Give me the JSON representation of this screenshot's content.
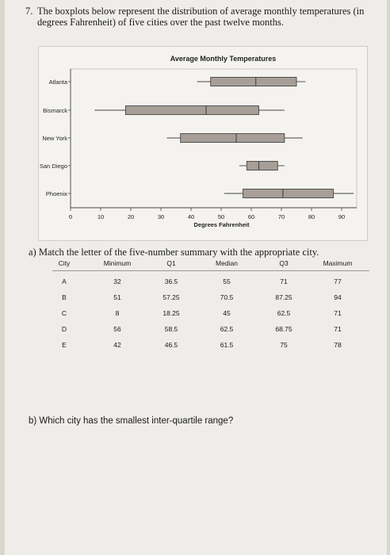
{
  "question": {
    "number": "7.",
    "text": "The boxplots below represent the distribution of average monthly temperatures (in degrees Fahrenheit) of five cities over the past twelve months."
  },
  "chart_data": {
    "type": "boxplot",
    "title": "Average Monthly Temperatures",
    "xlabel": "Degrees Fahrenheit",
    "ylabel": "",
    "xlim": [
      0,
      95
    ],
    "x_ticks": [
      0,
      10,
      20,
      30,
      40,
      50,
      60,
      70,
      80,
      90
    ],
    "series": [
      {
        "name": "Atlanta",
        "min": 42,
        "q1": 46.5,
        "median": 61.5,
        "q3": 75,
        "max": 78
      },
      {
        "name": "Bismarck",
        "min": 8,
        "q1": 18.25,
        "median": 45,
        "q3": 62.5,
        "max": 71
      },
      {
        "name": "New York",
        "min": 32,
        "q1": 36.5,
        "median": 55,
        "q3": 71,
        "max": 77
      },
      {
        "name": "San Diego",
        "min": 56,
        "q1": 58.5,
        "median": 62.5,
        "q3": 68.75,
        "max": 71
      },
      {
        "name": "Phoenix",
        "min": 51,
        "q1": 57.25,
        "median": 70.5,
        "q3": 87.25,
        "max": 94
      }
    ]
  },
  "part_a": {
    "prompt": "a) Match the letter of the five-number summary with the appropriate city.",
    "headers": [
      "City",
      "Minimum",
      "Q1",
      "Median",
      "Q3",
      "Maximum"
    ],
    "rows": [
      [
        "A",
        "32",
        "36.5",
        "55",
        "71",
        "77"
      ],
      [
        "B",
        "51",
        "57.25",
        "70.5",
        "87.25",
        "94"
      ],
      [
        "C",
        "8",
        "18.25",
        "45",
        "62.5",
        "71"
      ],
      [
        "D",
        "56",
        "58.5",
        "62.5",
        "68.75",
        "71"
      ],
      [
        "E",
        "42",
        "46.5",
        "61.5",
        "75",
        "78"
      ]
    ]
  },
  "part_b": {
    "prompt": "b) Which city has the smallest inter-quartile range?"
  },
  "colors": {
    "box_fill": "#a79f97",
    "line": "#444444",
    "paper": "#efedea"
  }
}
